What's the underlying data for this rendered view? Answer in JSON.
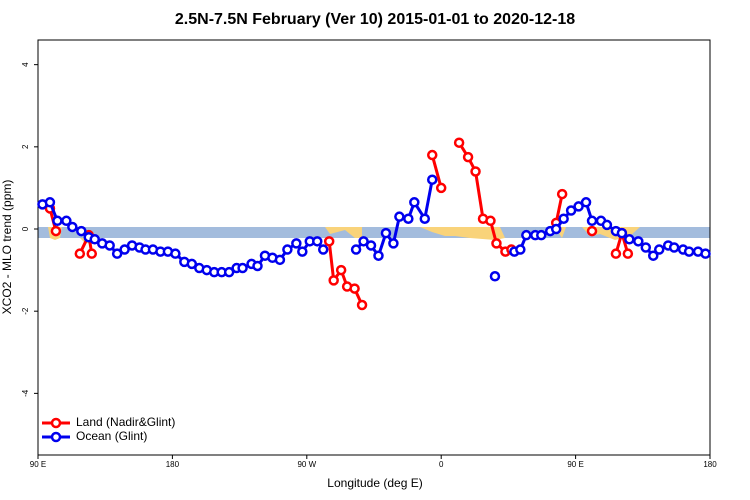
{
  "chart_data": {
    "type": "line",
    "title": "2.5N-7.5N February (Ver 10)   2015-01-01 to 2020-12-18",
    "x_label": "Longitude (deg E)",
    "y_label": "XCO2 - MLO trend (ppm)",
    "xlim": [
      90,
      540
    ],
    "xticks": [
      {
        "value": 90,
        "label": "90 E"
      },
      180,
      {
        "value": 270,
        "label": "90 W"
      },
      {
        "value": 360,
        "label": "0"
      },
      {
        "value": 450,
        "label": "90 E"
      },
      {
        "value": 540,
        "label": "180"
      }
    ],
    "ylim": [
      -5.5,
      4.6
    ],
    "yticks": [
      -4,
      -2,
      0,
      2,
      4
    ],
    "legend": "bottom-left",
    "series": [
      {
        "name": "Land (Nadir&Glint)",
        "color": "#ff0000",
        "x": [
          98,
          102,
          null,
          118,
          124,
          126,
          null,
          285,
          288,
          293,
          297,
          302,
          307,
          null,
          354,
          360,
          null,
          372,
          378,
          383,
          388,
          393,
          397,
          403,
          407,
          null,
          437,
          441,
          null,
          461,
          null,
          477,
          481,
          485
        ],
        "values": [
          0.5,
          -0.05,
          null,
          -0.6,
          -0.15,
          -0.6,
          null,
          -0.3,
          -1.25,
          -1.0,
          -1.4,
          -1.45,
          -1.85,
          null,
          1.8,
          1.0,
          null,
          2.1,
          1.75,
          1.4,
          0.25,
          0.2,
          -0.35,
          -0.55,
          -0.5,
          null,
          0.15,
          0.85,
          null,
          -0.05,
          null,
          -0.6,
          -0.1,
          -0.6
        ]
      },
      {
        "name": "Ocean (Glint)",
        "color": "#0000ee",
        "x": [
          93,
          98,
          103,
          109,
          113,
          119,
          124,
          128,
          133,
          138,
          143,
          148,
          153,
          158,
          162,
          167,
          172,
          177,
          182,
          188,
          193,
          198,
          203,
          208,
          213,
          218,
          223,
          227,
          233,
          237,
          242,
          247,
          252,
          257,
          263,
          267,
          272,
          277,
          281,
          null,
          303,
          308,
          313,
          318,
          323,
          328,
          332,
          338,
          342,
          349,
          354,
          null,
          396,
          null,
          409,
          413,
          417,
          423,
          427,
          433,
          437,
          442,
          447,
          452,
          457,
          461,
          467,
          471,
          477,
          481,
          486,
          492,
          497,
          502,
          506,
          512,
          516,
          522,
          526,
          532,
          537
        ],
        "values": [
          0.6,
          0.65,
          0.2,
          0.2,
          0.05,
          -0.05,
          -0.2,
          -0.25,
          -0.35,
          -0.4,
          -0.6,
          -0.5,
          -0.4,
          -0.45,
          -0.5,
          -0.5,
          -0.55,
          -0.55,
          -0.6,
          -0.8,
          -0.85,
          -0.95,
          -1.0,
          -1.05,
          -1.05,
          -1.05,
          -0.95,
          -0.95,
          -0.85,
          -0.9,
          -0.65,
          -0.7,
          -0.75,
          -0.5,
          -0.35,
          -0.55,
          -0.3,
          -0.3,
          -0.5,
          null,
          -0.5,
          -0.3,
          -0.4,
          -0.65,
          -0.1,
          -0.35,
          0.3,
          0.25,
          0.65,
          0.25,
          1.2,
          null,
          -1.15,
          null,
          -0.55,
          -0.5,
          -0.15,
          -0.15,
          -0.15,
          -0.05,
          0.0,
          0.25,
          0.45,
          0.55,
          0.65,
          0.2,
          0.2,
          0.1,
          -0.05,
          -0.1,
          -0.25,
          -0.3,
          -0.45,
          -0.65,
          -0.5,
          -0.4,
          -0.45,
          -0.5,
          -0.55,
          -0.55,
          -0.6
        ]
      }
    ]
  }
}
